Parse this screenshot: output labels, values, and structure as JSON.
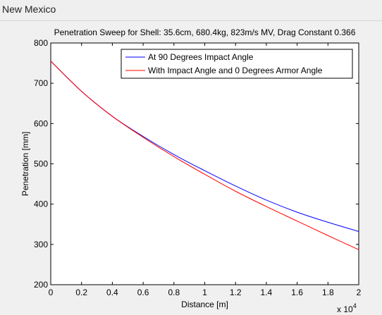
{
  "window": {
    "title": "New Mexico"
  },
  "chart_data": {
    "type": "line",
    "title": "Penetration Sweep for Shell: 35.6cm, 680.4kg, 823m/s MV, Drag Constant 0.366",
    "xlabel": "Distance [m]",
    "ylabel": "Penetration [mm]",
    "xlim": [
      0,
      20000
    ],
    "ylim": [
      200,
      800
    ],
    "x_tick_values": [
      0,
      2000,
      4000,
      6000,
      8000,
      10000,
      12000,
      14000,
      16000,
      18000,
      20000
    ],
    "x_tick_labels": [
      "0",
      "0.2",
      "0.4",
      "0.6",
      "0.8",
      "1",
      "1.2",
      "1.4",
      "1.6",
      "1.8",
      "2"
    ],
    "x_exponent_label": "x 10",
    "x_exponent_power": "4",
    "y_ticks": [
      200,
      300,
      400,
      500,
      600,
      700,
      800
    ],
    "grid": false,
    "legend_position": "top-right",
    "series": [
      {
        "name": "At 90 Degrees Impact Angle",
        "color": "#0000ff",
        "x": [
          0,
          2000,
          4000,
          6000,
          8000,
          10000,
          12000,
          14000,
          16000,
          18000,
          20000
        ],
        "y": [
          755,
          680,
          618,
          568,
          523,
          483,
          445,
          410,
          380,
          355,
          332
        ]
      },
      {
        "name": "With Impact Angle and 0 Degrees Armor Angle",
        "color": "#ff0000",
        "x": [
          0,
          2000,
          4000,
          6000,
          8000,
          10000,
          12000,
          14000,
          16000,
          18000,
          20000
        ],
        "y": [
          755,
          680,
          618,
          566,
          518,
          474,
          432,
          394,
          358,
          322,
          287
        ]
      }
    ]
  }
}
